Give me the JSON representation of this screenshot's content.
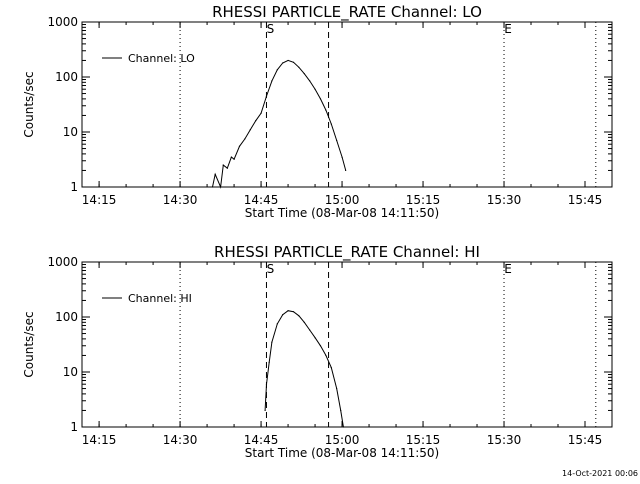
{
  "footer": {
    "timestamp": "14-Oct-2021 00:06"
  },
  "chart_data": [
    {
      "type": "line",
      "title": "RHESSI PARTICLE_RATE Channel: LO",
      "xlabel": "Start Time (08-Mar-08 14:11:50)",
      "ylabel": "Counts/sec",
      "y_scale": "log",
      "ylim": [
        1,
        1000
      ],
      "xlim": [
        "14:11:50",
        "15:50:00"
      ],
      "x_ticks": [
        "14:15",
        "14:30",
        "14:45",
        "15:00",
        "15:15",
        "15:30",
        "15:45"
      ],
      "y_ticks": [
        "1",
        "10",
        "100",
        "1000"
      ],
      "legend": {
        "position": "top-left",
        "entries": [
          "Channel: LO"
        ]
      },
      "markers": [
        {
          "label": "S",
          "time": "14:46:00",
          "style": "dashed"
        },
        {
          "label": "",
          "time": "14:57:30",
          "style": "dashed"
        },
        {
          "label": "E",
          "time": "15:30:00",
          "style": "dotted"
        }
      ],
      "extra_lines": [
        {
          "time": "14:30:00",
          "style": "dotted"
        },
        {
          "time": "15:47:00",
          "style": "dotted"
        }
      ],
      "series": [
        {
          "name": "Channel: LO",
          "x": [
            "14:36:00",
            "14:36:30",
            "14:37:30",
            "14:38:00",
            "14:38:45",
            "14:39:30",
            "14:40:00",
            "14:41:00",
            "14:42:00",
            "14:43:00",
            "14:44:00",
            "14:45:00",
            "14:46:00",
            "14:47:00",
            "14:48:00",
            "14:49:00",
            "14:50:00",
            "14:51:00",
            "14:52:00",
            "14:53:00",
            "14:54:00",
            "14:55:00",
            "14:56:00",
            "14:57:00",
            "14:58:00",
            "14:59:00",
            "15:00:00",
            "15:00:40"
          ],
          "values": [
            1,
            1.7,
            1,
            2.5,
            2.2,
            3.5,
            3.2,
            5.5,
            7.5,
            11,
            16,
            22,
            45,
            85,
            135,
            180,
            200,
            185,
            150,
            115,
            85,
            60,
            40,
            25,
            14,
            7,
            3.5,
            2
          ]
        }
      ]
    },
    {
      "type": "line",
      "title": "RHESSI PARTICLE_RATE Channel: HI",
      "xlabel": "Start Time (08-Mar-08 14:11:50)",
      "ylabel": "Counts/sec",
      "y_scale": "log",
      "ylim": [
        1,
        1000
      ],
      "xlim": [
        "14:11:50",
        "15:50:00"
      ],
      "x_ticks": [
        "14:15",
        "14:30",
        "14:45",
        "15:00",
        "15:15",
        "15:30",
        "15:45"
      ],
      "y_ticks": [
        "1",
        "10",
        "100",
        "1000"
      ],
      "legend": {
        "position": "top-left",
        "entries": [
          "Channel: HI"
        ]
      },
      "markers": [
        {
          "label": "S",
          "time": "14:46:00",
          "style": "dashed"
        },
        {
          "label": "",
          "time": "14:57:30",
          "style": "dashed"
        },
        {
          "label": "E",
          "time": "15:30:00",
          "style": "dotted"
        }
      ],
      "extra_lines": [
        {
          "time": "14:30:00",
          "style": "dotted"
        },
        {
          "time": "15:47:00",
          "style": "dotted"
        }
      ],
      "series": [
        {
          "name": "Channel: HI",
          "x": [
            "14:45:45",
            "14:46:00",
            "14:46:30",
            "14:47:00",
            "14:48:00",
            "14:49:00",
            "14:50:00",
            "14:51:00",
            "14:52:00",
            "14:53:00",
            "14:54:00",
            "14:55:00",
            "14:56:00",
            "14:57:00",
            "14:58:00",
            "14:59:00",
            "14:59:45",
            "15:00:15"
          ],
          "values": [
            2,
            6,
            15,
            35,
            75,
            110,
            130,
            125,
            105,
            80,
            58,
            42,
            30,
            20,
            12,
            5,
            2,
            1
          ]
        }
      ]
    }
  ]
}
